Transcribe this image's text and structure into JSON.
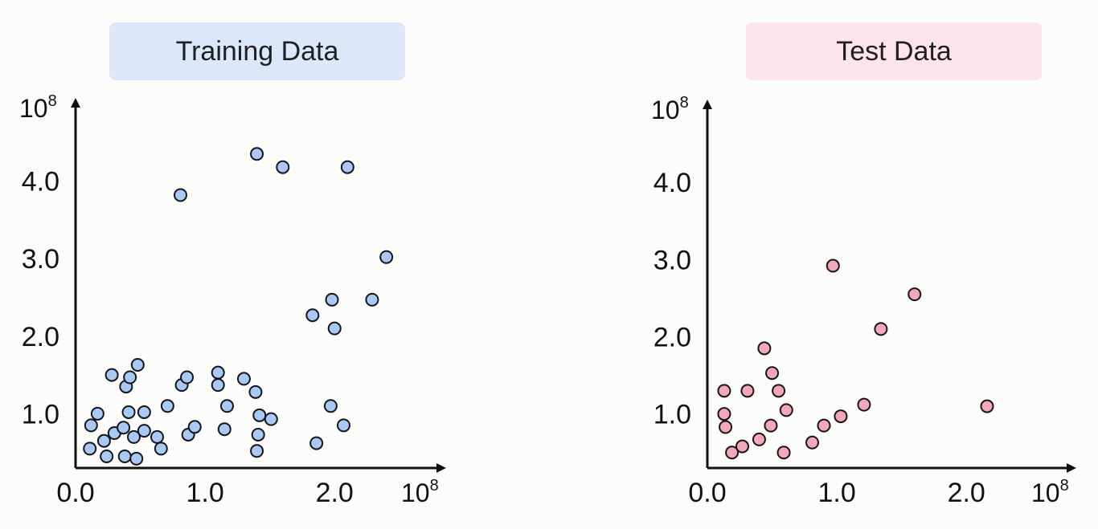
{
  "colors": {
    "training_point": "#a9c8f4",
    "test_point": "#f4a7bb",
    "training_title_bg": "#dce8fa",
    "test_title_bg": "#fde3ea",
    "axis": "#111111"
  },
  "chart_data": [
    {
      "type": "scatter",
      "title": "Training Data",
      "xlabel": "",
      "ylabel": "",
      "x_multiplier_label": "10",
      "x_multiplier_exp": "8",
      "y_multiplier_label": "10",
      "y_multiplier_exp": "8",
      "xlim": [
        0,
        2.7
      ],
      "ylim": [
        0.3,
        5.0
      ],
      "x_ticks": [
        0,
        1,
        2
      ],
      "x_tick_labels": [
        "0.0",
        "1.0",
        "2.0"
      ],
      "y_ticks": [
        1,
        2,
        3,
        4
      ],
      "y_tick_labels": [
        "1.0",
        "2.0",
        "3.0",
        "4.0"
      ],
      "grid": false,
      "points": [
        [
          0.12,
          0.85
        ],
        [
          0.17,
          1.0
        ],
        [
          0.11,
          0.55
        ],
        [
          0.22,
          0.65
        ],
        [
          0.24,
          0.45
        ],
        [
          0.3,
          0.75
        ],
        [
          0.28,
          1.5
        ],
        [
          0.37,
          0.82
        ],
        [
          0.39,
          1.35
        ],
        [
          0.42,
          1.47
        ],
        [
          0.41,
          1.02
        ],
        [
          0.38,
          0.45
        ],
        [
          0.45,
          0.7
        ],
        [
          0.48,
          1.63
        ],
        [
          0.47,
          0.42
        ],
        [
          0.53,
          0.78
        ],
        [
          0.53,
          1.02
        ],
        [
          0.63,
          0.7
        ],
        [
          0.66,
          0.55
        ],
        [
          0.71,
          1.1
        ],
        [
          0.81,
          3.82
        ],
        [
          0.82,
          1.37
        ],
        [
          0.86,
          1.47
        ],
        [
          0.87,
          0.73
        ],
        [
          0.92,
          0.83
        ],
        [
          1.1,
          1.53
        ],
        [
          1.1,
          1.37
        ],
        [
          1.15,
          0.8
        ],
        [
          1.17,
          1.1
        ],
        [
          1.3,
          1.45
        ],
        [
          1.4,
          4.35
        ],
        [
          1.39,
          1.28
        ],
        [
          1.42,
          0.98
        ],
        [
          1.41,
          0.73
        ],
        [
          1.4,
          0.52
        ],
        [
          1.51,
          0.93
        ],
        [
          1.6,
          4.18
        ],
        [
          1.83,
          2.27
        ],
        [
          1.86,
          0.62
        ],
        [
          1.97,
          1.1
        ],
        [
          1.98,
          2.47
        ],
        [
          2.0,
          2.1
        ],
        [
          2.07,
          0.85
        ],
        [
          2.1,
          4.18
        ],
        [
          2.29,
          2.47
        ],
        [
          2.4,
          3.02
        ]
      ]
    },
    {
      "type": "scatter",
      "title": "Test Data",
      "xlabel": "",
      "ylabel": "",
      "x_multiplier_label": "10",
      "x_multiplier_exp": "8",
      "y_multiplier_label": "10",
      "y_multiplier_exp": "8",
      "xlim": [
        0,
        2.7
      ],
      "ylim": [
        0.3,
        5.0
      ],
      "x_ticks": [
        0,
        1,
        2
      ],
      "x_tick_labels": [
        "0.0",
        "1.0",
        "2.0"
      ],
      "y_ticks": [
        1,
        2,
        3,
        4
      ],
      "y_tick_labels": [
        "1.0",
        "2.0",
        "3.0",
        "4.0"
      ],
      "grid": false,
      "points": [
        [
          0.13,
          1.3
        ],
        [
          0.13,
          1.0
        ],
        [
          0.14,
          0.83
        ],
        [
          0.19,
          0.5
        ],
        [
          0.27,
          0.58
        ],
        [
          0.31,
          1.3
        ],
        [
          0.4,
          0.67
        ],
        [
          0.44,
          1.85
        ],
        [
          0.49,
          0.85
        ],
        [
          0.5,
          1.53
        ],
        [
          0.55,
          1.3
        ],
        [
          0.59,
          0.5
        ],
        [
          0.61,
          1.05
        ],
        [
          0.81,
          0.63
        ],
        [
          0.9,
          0.85
        ],
        [
          0.97,
          2.92
        ],
        [
          1.03,
          0.97
        ],
        [
          1.21,
          1.12
        ],
        [
          1.34,
          2.1
        ],
        [
          1.6,
          2.55
        ],
        [
          2.16,
          1.1
        ]
      ]
    }
  ]
}
